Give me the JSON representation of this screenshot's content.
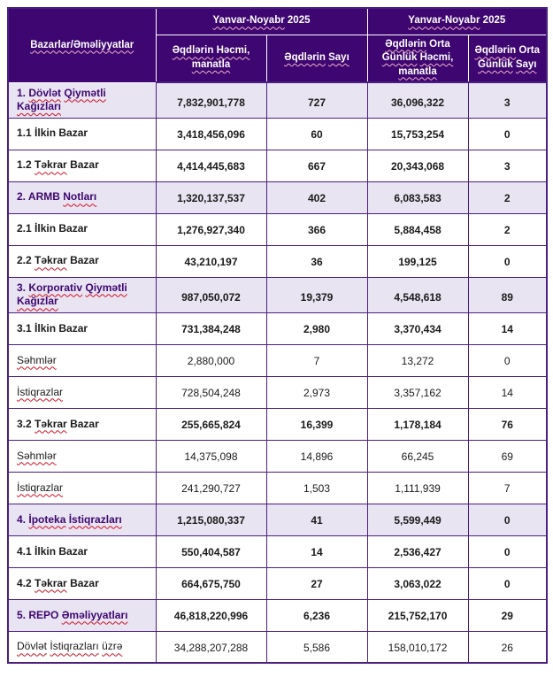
{
  "colors": {
    "header_background": "#3D0670",
    "header_text": "#ffffff",
    "section_row_background": "#E9E4F1",
    "section_label_text": "#3D0670",
    "grid_border": "#4B1E82",
    "header_inner_border": "#ffffff",
    "body_text": "#1a1a1a",
    "spellcheck_squiggle": "#CE1126",
    "spellcheck_squiggle_on_dark": "#F2AFCB"
  },
  "table": {
    "header": {
      "corner": {
        "label": "Bazarlar/Əməliyyatlar",
        "misspelled": [
          "Bazarlar/Əməliyyatlar"
        ]
      },
      "periods": [
        {
          "label": "Yanvar-Noyabr 2025",
          "misspelled": [
            "Yanvar-Noyabr"
          ]
        },
        {
          "label": "Yanvar-Noyabr 2025",
          "misspelled": [
            "Yanvar-Noyabr"
          ]
        }
      ],
      "columns": [
        {
          "label": "Əqdlərin Həcmi, manatla",
          "misspelled": [
            "Əqdlərin",
            "Həcmi,",
            "manatla"
          ]
        },
        {
          "label": "Əqdlərin Sayı",
          "misspelled": [
            "Əqdlərin",
            "Sayı"
          ]
        },
        {
          "label": "Əqdlərin Orta Günlük Həcmi, manatla",
          "misspelled": [
            "Əqdlərin",
            "Günlük",
            "Həcmi,",
            "manatla"
          ]
        },
        {
          "label": "Əqdlərin Orta Günlük Sayı",
          "misspelled": [
            "Əqdlərin",
            "Günlük",
            "Sayı"
          ]
        }
      ]
    },
    "rows": [
      {
        "label": "1. Dövlət Qiymətli Kağızları",
        "misspelled": [
          "Dövlət",
          "Qiymətli",
          "Kağızları"
        ],
        "style": "section",
        "values": [
          "7,832,901,778",
          "727",
          "36,096,322",
          "3"
        ]
      },
      {
        "label": "1.1 İlkin Bazar",
        "misspelled": [],
        "style": "sub",
        "values": [
          "3,418,456,096",
          "60",
          "15,753,254",
          "0"
        ]
      },
      {
        "label": "1.2 Təkrar Bazar",
        "misspelled": [
          "Təkrar"
        ],
        "style": "sub",
        "values": [
          "4,414,445,683",
          "667",
          "20,343,068",
          "3"
        ]
      },
      {
        "label": "2. ARMB Notları",
        "misspelled": [
          "Notları"
        ],
        "style": "section",
        "values": [
          "1,320,137,537",
          "402",
          "6,083,583",
          "2"
        ]
      },
      {
        "label": "2.1 İlkin Bazar",
        "misspelled": [],
        "style": "sub",
        "values": [
          "1,276,927,340",
          "366",
          "5,884,458",
          "2"
        ]
      },
      {
        "label": "2.2 Təkrar Bazar",
        "misspelled": [
          "Təkrar"
        ],
        "style": "sub",
        "values": [
          "43,210,197",
          "36",
          "199,125",
          "0"
        ]
      },
      {
        "label": "3. Korporativ Qiymətli Kağızlar",
        "misspelled": [
          "Korporativ",
          "Qiymətli",
          "Kağızlar"
        ],
        "style": "section",
        "values": [
          "987,050,072",
          "19,379",
          "4,548,618",
          "89"
        ]
      },
      {
        "label": "3.1 İlkin Bazar",
        "misspelled": [],
        "style": "sub",
        "values": [
          "731,384,248",
          "2,980",
          "3,370,434",
          "14"
        ]
      },
      {
        "label": "Səhmlər",
        "misspelled": [
          "Səhmlər"
        ],
        "style": "item",
        "values": [
          "2,880,000",
          "7",
          "13,272",
          "0"
        ]
      },
      {
        "label": "İstiqrazlar",
        "misspelled": [
          "İstiqrazlar"
        ],
        "style": "item",
        "values": [
          "728,504,248",
          "2,973",
          "3,357,162",
          "14"
        ]
      },
      {
        "label": "3.2 Təkrar Bazar",
        "misspelled": [
          "Təkrar"
        ],
        "style": "sub",
        "values": [
          "255,665,824",
          "16,399",
          "1,178,184",
          "76"
        ]
      },
      {
        "label": "Səhmlər",
        "misspelled": [
          "Səhmlər"
        ],
        "style": "item",
        "values": [
          "14,375,098",
          "14,896",
          "66,245",
          "69"
        ]
      },
      {
        "label": "İstiqrazlar",
        "misspelled": [
          "İstiqrazlar"
        ],
        "style": "item",
        "values": [
          "241,290,727",
          "1,503",
          "1,111,939",
          "7"
        ]
      },
      {
        "label": "4. İpoteka İstiqrazları",
        "misspelled": [
          "İpoteka",
          "İstiqrazları"
        ],
        "style": "section",
        "values": [
          "1,215,080,337",
          "41",
          "5,599,449",
          "0"
        ]
      },
      {
        "label": "4.1 İlkin Bazar",
        "misspelled": [],
        "style": "sub",
        "values": [
          "550,404,587",
          "14",
          "2,536,427",
          "0"
        ]
      },
      {
        "label": "4.2 Təkrar Bazar",
        "misspelled": [
          "Təkrar"
        ],
        "style": "sub",
        "values": [
          "664,675,750",
          "27",
          "3,063,022",
          "0"
        ]
      },
      {
        "label": "5. REPO Əməliyyatları",
        "misspelled": [
          "Əməliyyatları"
        ],
        "style": "section-label",
        "values": [
          "46,818,220,996",
          "6,236",
          "215,752,170",
          "29"
        ]
      },
      {
        "label": "Dövlət İstiqrazları üzrə",
        "misspelled": [
          "Dövlət",
          "İstiqrazları",
          "üzrə"
        ],
        "style": "item",
        "values": [
          "34,288,207,288",
          "5,586",
          "158,010,172",
          "26"
        ]
      }
    ]
  }
}
